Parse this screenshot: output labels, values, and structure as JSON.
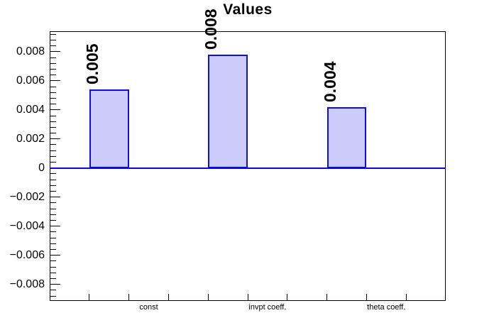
{
  "chart_data": {
    "type": "bar",
    "title": "Values",
    "categories": [
      "const",
      "invpt coeff.",
      "theta coeff."
    ],
    "values": [
      0.0054,
      0.0078,
      0.0042
    ],
    "bar_labels": [
      "0.005",
      "0.008",
      "0.004"
    ],
    "xlabel": "",
    "ylabel": "",
    "ylim": [
      -0.00914,
      0.00941
    ],
    "ytick_values": [
      0.008,
      0.006,
      0.004,
      0.002,
      0,
      -0.002,
      -0.004,
      -0.006,
      -0.008
    ],
    "ytick_labels": [
      "0.008",
      "0.006",
      "0.004",
      "0.002",
      "0",
      "−0.002",
      "−0.004",
      "−0.006",
      "−0.008"
    ],
    "y_minor_step": 0.0004,
    "n_bins": 10,
    "bar_bins": [
      1,
      4,
      7
    ],
    "grid": "off",
    "legend": "none",
    "colors": {
      "bar_fill": "#ccccfa",
      "bar_border": "#0f0fdd",
      "zero_line": "#0606dd",
      "frame": "#000000",
      "text": "#000000",
      "background": "#ffffff"
    }
  }
}
